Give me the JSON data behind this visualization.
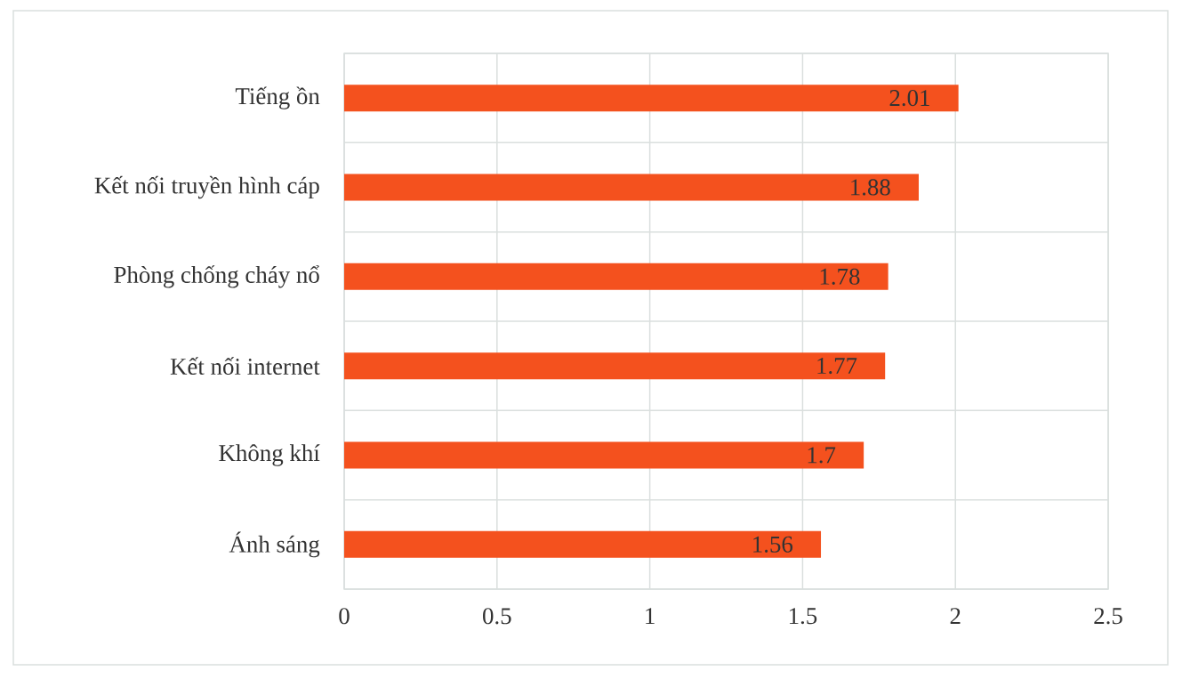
{
  "chart_data": {
    "type": "bar",
    "orientation": "horizontal",
    "categories": [
      "Tiếng ồn",
      "Kết nối truyền hình cáp",
      "Phòng chống cháy nổ",
      "Kết nối internet",
      "Không khí",
      "Ánh sáng"
    ],
    "values": [
      2.01,
      1.88,
      1.78,
      1.77,
      1.7,
      1.56
    ],
    "color": "#f4511e",
    "xlim": [
      0,
      2.5
    ],
    "xticks": [
      0,
      0.5,
      1,
      1.5,
      2,
      2.5
    ],
    "grid": true,
    "data_labels": true
  }
}
